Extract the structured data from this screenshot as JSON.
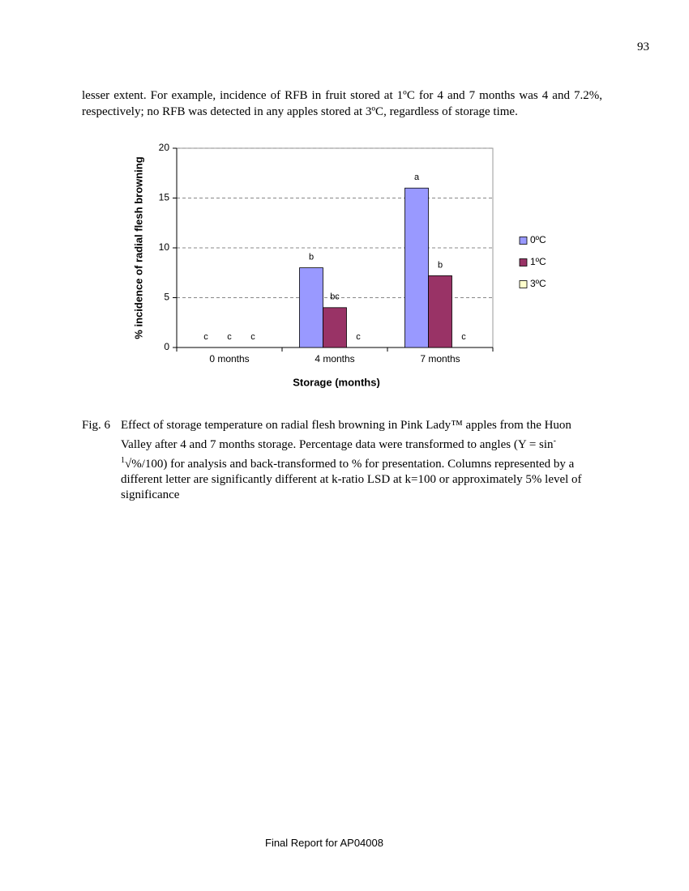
{
  "page_number": "93",
  "paragraph": "lesser extent. For example, incidence of RFB in fruit stored at 1ºC for 4 and 7 months was 4 and 7.2%, respectively; no RFB was detected in any apples stored at 3ºC, regardless of storage time.",
  "chart_data": {
    "type": "bar",
    "y_label": "% incidence of radial flesh browning",
    "x_label": "Storage (months)",
    "categories": [
      "0 months",
      "4 months",
      "7 months"
    ],
    "series": [
      {
        "name": "0ºC",
        "color": "#9999ff",
        "values": [
          0,
          8,
          16
        ],
        "significance": [
          "c",
          "b",
          "a"
        ]
      },
      {
        "name": "1ºC",
        "color": "#993366",
        "values": [
          0,
          4,
          7.2
        ],
        "significance": [
          "c",
          "bc",
          "b"
        ]
      },
      {
        "name": "3ºC",
        "color": "#ffffcc",
        "values": [
          0,
          0,
          0
        ],
        "significance": [
          "c",
          "c",
          "c"
        ]
      }
    ],
    "ylim": [
      0,
      20
    ],
    "yticks": [
      0,
      5,
      10,
      15,
      20
    ],
    "grid": true,
    "legend": "right"
  },
  "caption": {
    "label": "Fig. 6",
    "text_before": "Effect of storage temperature on radial flesh browning in Pink Lady™ apples from the Huon Valley after 4 and 7 months storage. Percentage data were transformed to angles (Y = sin",
    "superscript": "-1",
    "text_after": "√%/100) for analysis and back-transformed to % for presentation. Columns represented by a different letter are significantly different at k-ratio LSD at k=100 or approximately 5% level of significance"
  },
  "footer": "Final Report for AP04008"
}
